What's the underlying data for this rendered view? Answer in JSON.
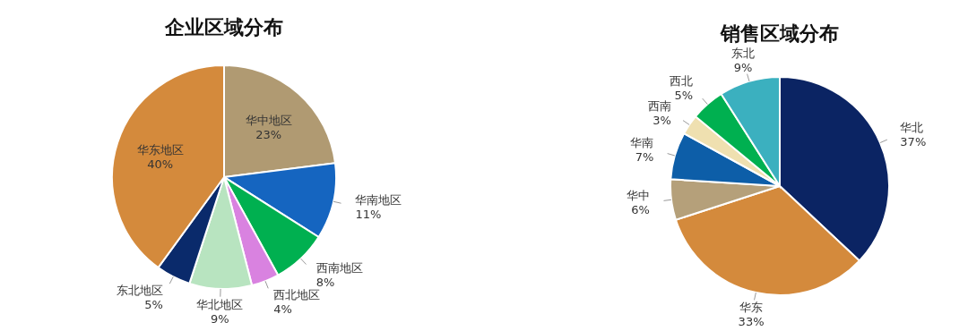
{
  "chart_data": [
    {
      "type": "pie",
      "title": "企业区域分布",
      "categories": [
        "华中地区",
        "华南地区",
        "西南地区",
        "西北地区",
        "华北地区",
        "东北地区",
        "华东地区"
      ],
      "values": [
        23,
        11,
        8,
        4,
        9,
        5,
        40
      ],
      "colors": [
        "#b09a72",
        "#1565c0",
        "#00b050",
        "#d982e0",
        "#b8e4c0",
        "#0a2a6b",
        "#d48a3c"
      ],
      "value_labels": [
        "23%",
        "11%",
        "8%",
        "4%",
        "9%",
        "5%",
        "40%"
      ]
    },
    {
      "type": "pie",
      "title": "销售区域分布",
      "categories": [
        "华北",
        "华东",
        "华中",
        "华南",
        "西南",
        "西北",
        "东北"
      ],
      "values": [
        37,
        33,
        6,
        7,
        3,
        5,
        9
      ],
      "colors": [
        "#0b2463",
        "#d48a3c",
        "#b5a07a",
        "#0d5ea8",
        "#efe0b0",
        "#00b050",
        "#3bb0bf"
      ],
      "value_labels": [
        "37%",
        "33%",
        "6%",
        "7%",
        "3%",
        "5%",
        "9%"
      ]
    }
  ]
}
